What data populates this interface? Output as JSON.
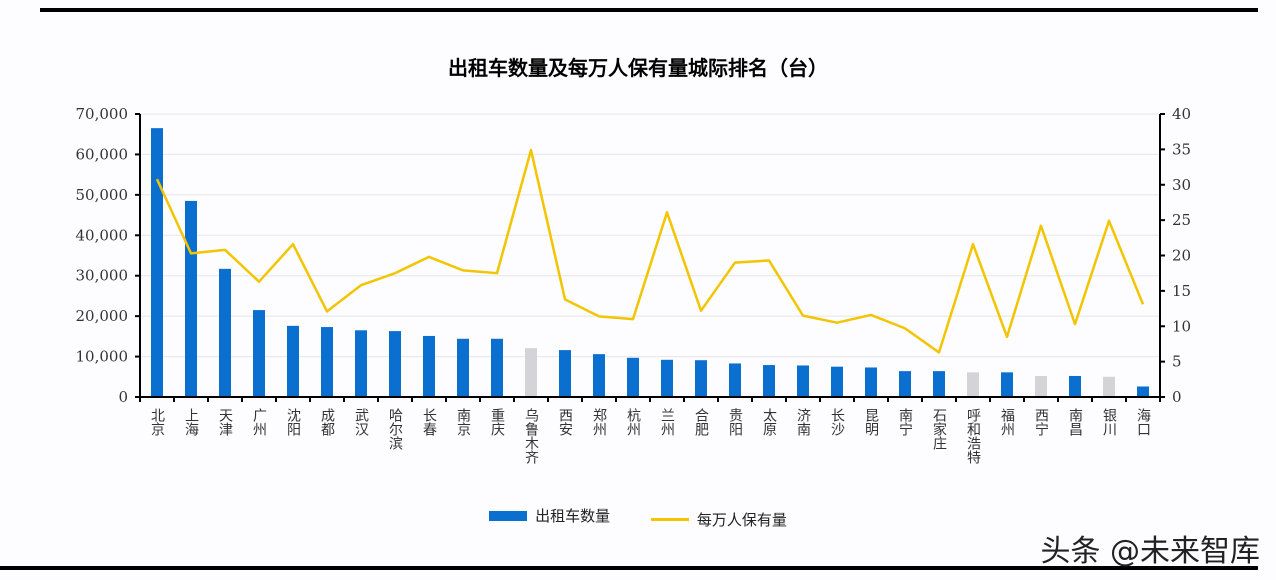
{
  "chart_data": {
    "type": "bar+line",
    "title": "出租车数量及每万人保有量城际排名（台）",
    "categories": [
      "北京",
      "上海",
      "天津",
      "广州",
      "沈阳",
      "成都",
      "武汉",
      "哈尔滨",
      "长春",
      "南京",
      "重庆",
      "乌鲁木齐",
      "西安",
      "郑州",
      "杭州",
      "兰州",
      "合肥",
      "贵阳",
      "太原",
      "济南",
      "长沙",
      "昆明",
      "南宁",
      "石家庄",
      "呼和浩特",
      "福州",
      "西宁",
      "南昌",
      "银川",
      "海口"
    ],
    "series": [
      {
        "name": "出租车数量",
        "type": "bar",
        "axis": "left",
        "color": "#0b6fcf",
        "values": [
          66500,
          48500,
          31700,
          21500,
          17600,
          17300,
          16500,
          16300,
          15100,
          14400,
          14400,
          12100,
          11600,
          10600,
          9700,
          9200,
          9100,
          8300,
          7900,
          7800,
          7500,
          7300,
          6400,
          6400,
          6100,
          6100,
          5200,
          5200,
          5000,
          2600
        ]
      },
      {
        "name": "每万人保有量",
        "type": "line",
        "axis": "right",
        "color": "#f2c500",
        "values": [
          30.8,
          20.3,
          20.8,
          16.3,
          21.6,
          12.1,
          15.8,
          17.5,
          19.8,
          17.9,
          17.5,
          34.9,
          13.8,
          11.4,
          11.0,
          26.1,
          12.2,
          19.0,
          19.3,
          11.5,
          10.5,
          11.6,
          9.7,
          6.3,
          21.6,
          8.5,
          24.2,
          10.3,
          24.9,
          13.1
        ]
      }
    ],
    "highlight_gray": [
      "乌鲁木齐",
      "呼和浩特",
      "西宁",
      "银川"
    ],
    "gray_color": "#d4d4d8",
    "y_left": {
      "range": [
        0,
        70000
      ],
      "ticks": [
        "0",
        "10,000",
        "20,000",
        "30,000",
        "40,000",
        "50,000",
        "60,000",
        "70,000"
      ]
    },
    "y_right": {
      "range": [
        0,
        40
      ],
      "ticks": [
        "0",
        "5",
        "10",
        "15",
        "20",
        "25",
        "30",
        "35",
        "40"
      ]
    },
    "grid": true,
    "legend": "bottom"
  },
  "watermark": "头条 @未来智库"
}
